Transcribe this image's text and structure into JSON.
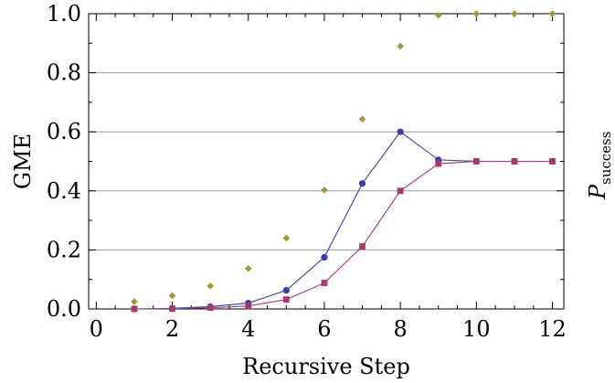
{
  "chart_data": {
    "type": "line",
    "xlabel": "Recursive Step",
    "ylabel": "GME",
    "ylabel_right_main": "P",
    "ylabel_right_sub": "success",
    "xlim": [
      -0.2,
      12.3
    ],
    "ylim": [
      0,
      1
    ],
    "xticks": [
      0,
      2,
      4,
      6,
      8,
      10,
      12
    ],
    "yticks": [
      0.0,
      0.2,
      0.4,
      0.6,
      0.8,
      1.0
    ],
    "ytick_labels": [
      "0.0",
      "0.2",
      "0.4",
      "0.6",
      "0.8",
      "1.0"
    ],
    "grid": "horizontal",
    "series": [
      {
        "color": "#3b3fa8",
        "marker": "circle",
        "line": true,
        "x": [
          1,
          2,
          3,
          4,
          5,
          6,
          7,
          8,
          9,
          10,
          11,
          12
        ],
        "y": [
          0.0,
          0.002,
          0.008,
          0.02,
          0.063,
          0.175,
          0.425,
          0.6,
          0.505,
          0.5,
          0.5,
          0.5
        ]
      },
      {
        "color": "#a8396f",
        "marker": "square",
        "line": true,
        "x": [
          1,
          2,
          3,
          4,
          5,
          6,
          7,
          8,
          9,
          10,
          11,
          12
        ],
        "y": [
          0.0,
          0.001,
          0.004,
          0.01,
          0.032,
          0.088,
          0.212,
          0.4,
          0.492,
          0.5,
          0.5,
          0.5
        ]
      },
      {
        "color": "#a89433",
        "marker": "diamond",
        "line": false,
        "x": [
          1,
          2,
          3,
          4,
          5,
          6,
          7,
          8,
          9,
          10,
          11,
          12
        ],
        "y": [
          0.025,
          0.045,
          0.078,
          0.137,
          0.24,
          0.403,
          0.643,
          0.89,
          0.995,
          1.0,
          1.0,
          1.0
        ]
      }
    ]
  }
}
